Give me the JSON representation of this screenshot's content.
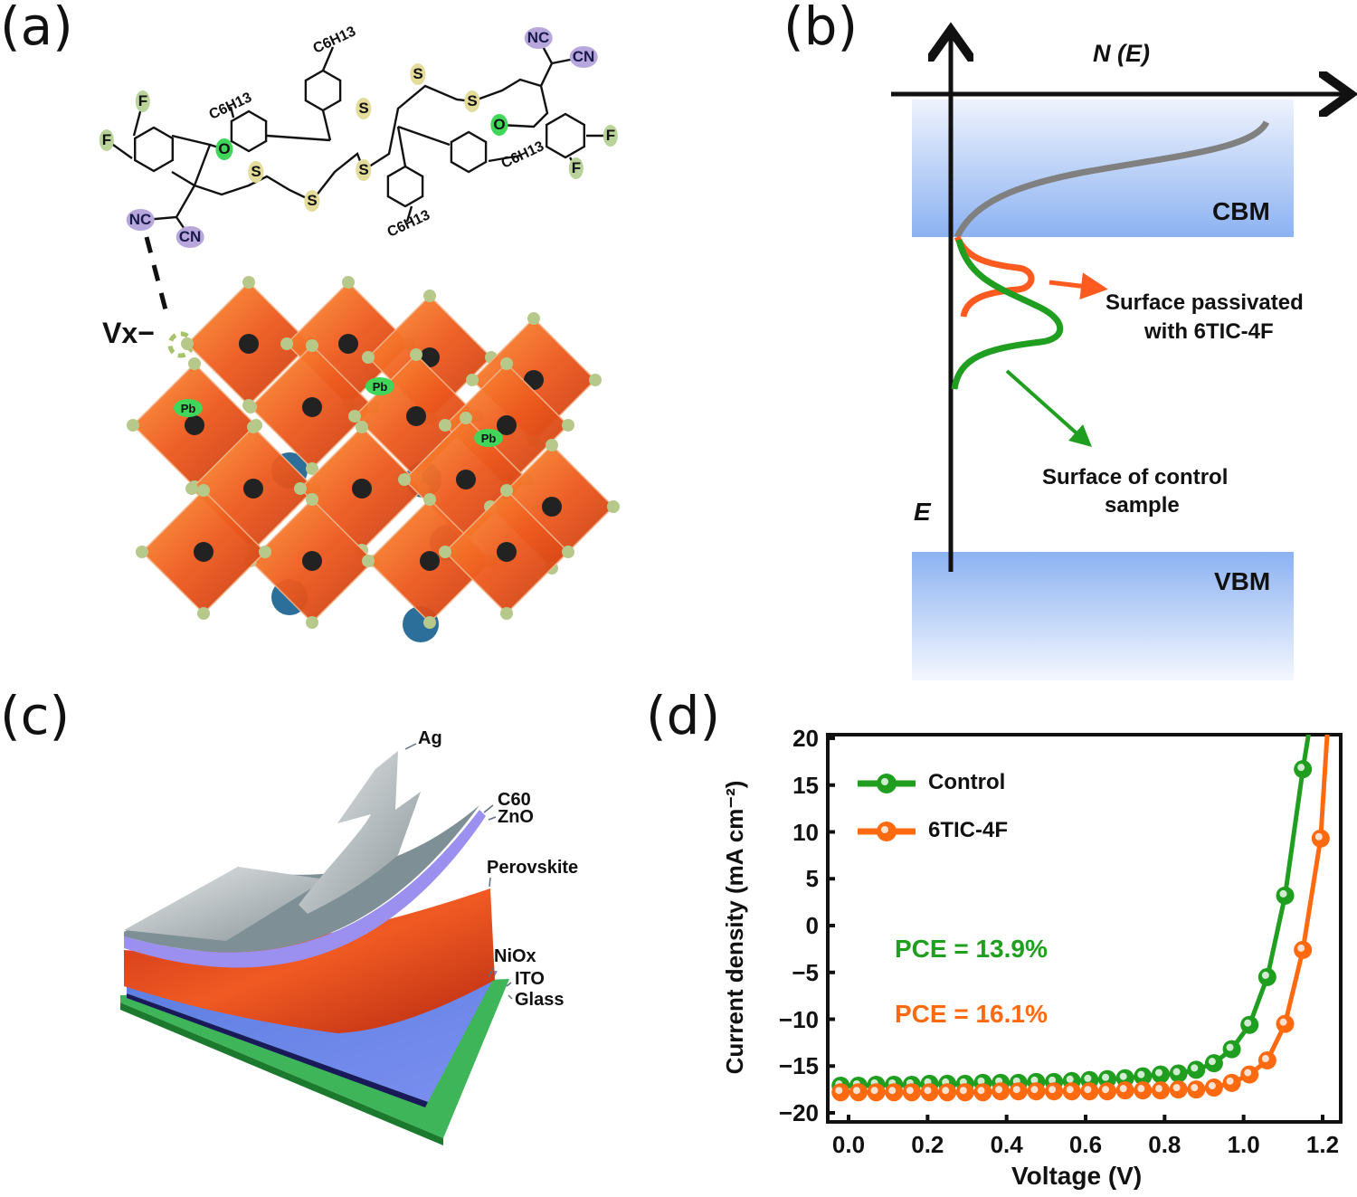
{
  "panel_labels": [
    "(a)",
    "(b)",
    "(c)",
    "(d)"
  ],
  "panel_a": {
    "atoms": [
      "F",
      "F",
      "O",
      "NC",
      "CN",
      "S",
      "S",
      "S",
      "S",
      "S",
      "S",
      "O",
      "NC",
      "CN",
      "F",
      "F"
    ],
    "alkyl": [
      "C6H13",
      "C6H13",
      "C6H13",
      "C6H13"
    ],
    "vacancy_label": "Vx−",
    "pb_labels": [
      "Pb",
      "Pb",
      "Pb"
    ],
    "colors": {
      "fluorine": "#b9d39a",
      "oxygen": "#3fd65a",
      "sulfur": "#e3dc9a",
      "nitrile": "#b7a7dc",
      "octahedron": "#e8501c",
      "halide": "#b6c98a",
      "cation": "#2b6f9a"
    }
  },
  "panel_b": {
    "x_axis_label": "N (E)",
    "y_axis_label": "E",
    "cbm": "CBM",
    "vbm": "VBM",
    "passivated_label_line1": "Surface passivated",
    "passivated_label_line2": "with 6TIC-4F",
    "control_label_line1": "Surface of control",
    "control_label_line2": "sample",
    "colors": {
      "band": "#7fa8f0",
      "dos": "#808080",
      "passivated": "#ff5a1f",
      "control": "#1f9e1f"
    }
  },
  "panel_c": {
    "layers": [
      "Ag",
      "C60",
      "ZnO",
      "Perovskite",
      "NiOx",
      "ITO",
      "Glass"
    ]
  },
  "chart_data": {
    "type": "line",
    "title": "",
    "xlabel": "Voltage (V)",
    "ylabel": "Current density (mA cm⁻²)",
    "xlim": [
      -0.05,
      1.25
    ],
    "ylim": [
      -20,
      20
    ],
    "xticks": [
      "0.0",
      "0.2",
      "0.4",
      "0.6",
      "0.8",
      "1.0",
      "1.2"
    ],
    "yticks": [
      "20",
      "15",
      "10",
      "5",
      "0",
      "−5",
      "−10",
      "−15",
      "−20"
    ],
    "grid": false,
    "legend": "top-left",
    "series": [
      {
        "name": "Control",
        "color": "#1f9e1f",
        "x": [
          -0.02,
          0.025,
          0.07,
          0.115,
          0.16,
          0.205,
          0.25,
          0.295,
          0.34,
          0.385,
          0.43,
          0.475,
          0.52,
          0.565,
          0.61,
          0.655,
          0.7,
          0.745,
          0.79,
          0.835,
          0.88,
          0.925,
          0.97,
          1.015,
          1.06,
          1.105,
          1.15
        ],
        "y": [
          -17.1,
          -17.1,
          -17.0,
          -17.0,
          -17.0,
          -16.9,
          -16.9,
          -16.9,
          -16.8,
          -16.8,
          -16.8,
          -16.7,
          -16.7,
          -16.6,
          -16.5,
          -16.4,
          -16.3,
          -16.1,
          -15.9,
          -15.8,
          -15.4,
          -14.7,
          -13.2,
          -10.6,
          -5.5,
          3.2,
          16.7
        ],
        "annotation": "PCE = 13.9%"
      },
      {
        "name": "6TIC-4F",
        "color": "#ff6a10",
        "x": [
          -0.02,
          0.025,
          0.07,
          0.115,
          0.16,
          0.205,
          0.25,
          0.295,
          0.34,
          0.385,
          0.43,
          0.475,
          0.52,
          0.565,
          0.61,
          0.655,
          0.7,
          0.745,
          0.79,
          0.835,
          0.88,
          0.925,
          0.97,
          1.015,
          1.06,
          1.105,
          1.15,
          1.195
        ],
        "y": [
          -17.8,
          -17.8,
          -17.8,
          -17.8,
          -17.8,
          -17.8,
          -17.8,
          -17.8,
          -17.8,
          -17.7,
          -17.7,
          -17.7,
          -17.7,
          -17.7,
          -17.7,
          -17.7,
          -17.6,
          -17.6,
          -17.6,
          -17.5,
          -17.5,
          -17.3,
          -16.8,
          -15.9,
          -14.4,
          -10.5,
          -2.6,
          9.3
        ],
        "annotation": "PCE = 16.1%"
      }
    ]
  }
}
